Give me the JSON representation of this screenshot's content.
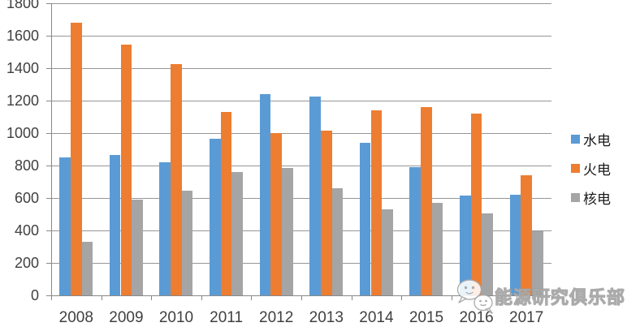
{
  "chart_data": {
    "type": "bar",
    "title": "",
    "xlabel": "",
    "ylabel": "",
    "categories": [
      "2008",
      "2009",
      "2010",
      "2011",
      "2012",
      "2013",
      "2014",
      "2015",
      "2016",
      "2017"
    ],
    "series": [
      {
        "name": "水电",
        "color": "#5B9BD5",
        "values": [
          849,
          864,
          818,
          967,
          1239,
          1223,
          942,
          789,
          617,
          618
        ]
      },
      {
        "name": "火电",
        "color": "#ED7D31",
        "values": [
          1680,
          1544,
          1424,
          1132,
          1001,
          1014,
          1141,
          1162,
          1119,
          740
        ]
      },
      {
        "name": "核电",
        "color": "#A5A5A5",
        "values": [
          329,
          588,
          647,
          762,
          784,
          661,
          531,
          568,
          506,
          395
        ]
      }
    ],
    "ylim": [
      0,
      1800
    ],
    "ytick_step": 200,
    "ytick_labels": [
      "0",
      "200",
      "400",
      "600",
      "800",
      "1000",
      "1200",
      "1400",
      "1600",
      "1800"
    ],
    "grid": true,
    "legend_position": "right"
  },
  "watermark": {
    "text": "能源研究俱乐部",
    "icon": "chat-bubbles-icon"
  },
  "colors": {
    "gridline": "#969696",
    "axis": "#898989",
    "axis_label": "#404040"
  }
}
